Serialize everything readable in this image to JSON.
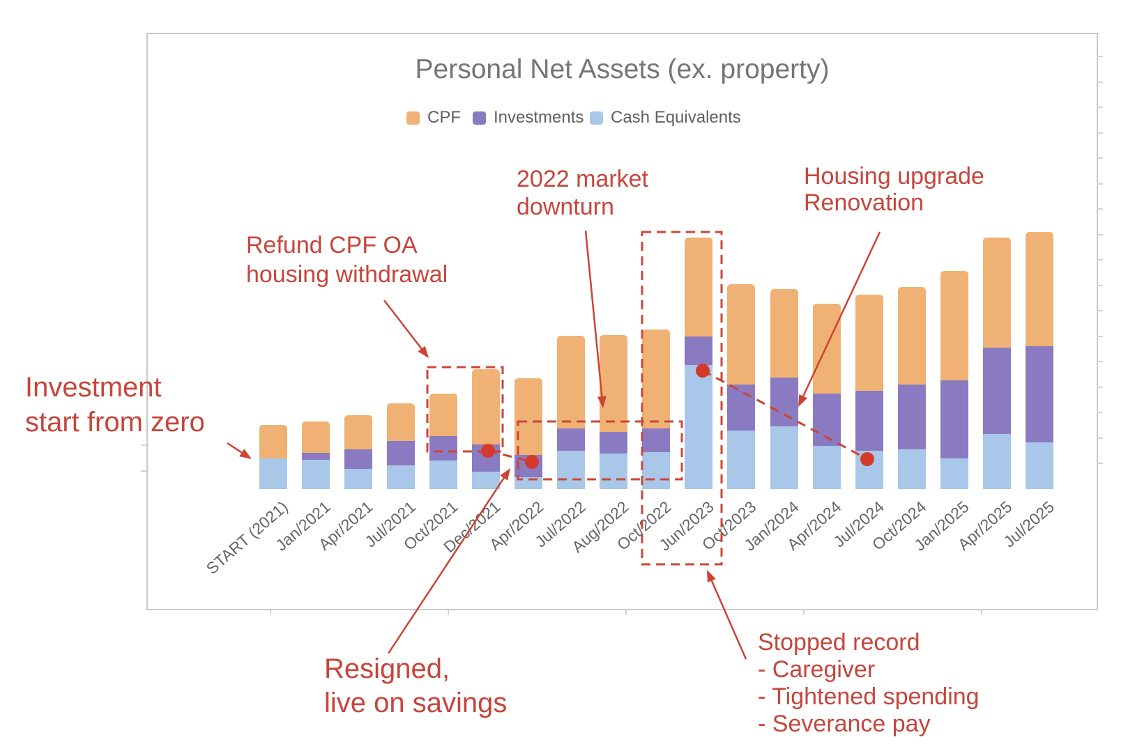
{
  "title": "Personal Net Assets (ex. property)",
  "legend": [
    {
      "label": "CPF",
      "color": "#efb274"
    },
    {
      "label": "Investments",
      "color": "#8a7ac1"
    },
    {
      "label": "Cash Equivalents",
      "color": "#a9c7e8"
    }
  ],
  "colors": {
    "annotation_text_red": "#c6453c",
    "annotation_line_red": "#cd4334",
    "event_dot_red": "#d23b2c",
    "title_gray": "#757575",
    "axis_label_gray": "#666666"
  },
  "chart_data": {
    "type": "bar",
    "stacked": true,
    "title": "Personal Net Assets (ex. property)",
    "xlabel": "",
    "ylabel": "",
    "value_axis": "unlabeled, relative units (no tick labels shown)",
    "legend_position": "top",
    "grid": false,
    "categories": [
      "START (2021)",
      "Jan/2021",
      "Apr/2021",
      "Jul/2021",
      "Oct/2021",
      "Dec/2021",
      "Apr/2022",
      "Jul/2022",
      "Aug/2022",
      "Oct/2022",
      "Jun/2023",
      "Oct/2023",
      "Jan/2024",
      "Apr/2024",
      "Jul/2024",
      "Oct/2024",
      "Jan/2025",
      "Apr/2025",
      "Jul/2025"
    ],
    "series": [
      {
        "name": "CPF",
        "color": "#efb274",
        "values": [
          48,
          45,
          49,
          54,
          61,
          108,
          110,
          133,
          139,
          142,
          142,
          144,
          127,
          129,
          138,
          140,
          157,
          158,
          164
        ]
      },
      {
        "name": "Investments",
        "color": "#8a7ac1",
        "values": [
          0,
          10,
          28,
          35,
          35,
          39,
          32,
          32,
          31,
          34,
          41,
          66,
          70,
          75,
          86,
          93,
          112,
          124,
          138
        ]
      },
      {
        "name": "Cash Equivalents",
        "color": "#a9c7e8",
        "values": [
          44,
          42,
          29,
          34,
          41,
          25,
          17,
          55,
          51,
          53,
          178,
          84,
          90,
          62,
          55,
          57,
          44,
          79,
          67
        ]
      }
    ],
    "stack_order_bottom_to_top": [
      "Cash Equivalents",
      "Investments",
      "CPF"
    ]
  },
  "annotations": {
    "invest_zero": {
      "lines": [
        "Investment",
        "start from zero"
      ]
    },
    "refund": {
      "lines": [
        "Refund CPF OA",
        "housing withdrawal"
      ]
    },
    "downturn": {
      "lines": [
        "2022 market",
        "downturn"
      ]
    },
    "housing": {
      "lines": [
        "Housing upgrade",
        "Renovation"
      ]
    },
    "resigned": {
      "lines": [
        "Resigned,",
        "live on savings"
      ]
    },
    "stopped": {
      "lines": [
        "Stopped record",
        "- Caregiver",
        "- Tightened spending",
        "- Severance pay"
      ]
    }
  }
}
